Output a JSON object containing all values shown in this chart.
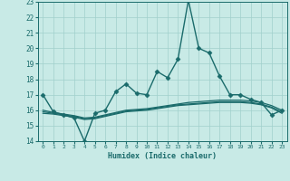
{
  "xlabel": "Humidex (Indice chaleur)",
  "xlim": [
    -0.5,
    23.5
  ],
  "ylim": [
    14,
    23
  ],
  "yticks": [
    14,
    15,
    16,
    17,
    18,
    19,
    20,
    21,
    22,
    23
  ],
  "xticks": [
    0,
    1,
    2,
    3,
    4,
    5,
    6,
    7,
    8,
    9,
    10,
    11,
    12,
    13,
    14,
    15,
    16,
    17,
    18,
    19,
    20,
    21,
    22,
    23
  ],
  "background_color": "#c8eae6",
  "grid_color": "#a0d0cc",
  "line_color": "#1a6b6b",
  "series": [
    {
      "x": [
        0,
        1,
        2,
        3,
        4,
        5,
        6,
        7,
        8,
        9,
        10,
        11,
        12,
        13,
        14,
        15,
        16,
        17,
        18,
        19,
        20,
        21,
        22,
        23
      ],
      "y": [
        17.0,
        15.9,
        15.7,
        15.5,
        14.0,
        15.8,
        16.0,
        17.2,
        17.7,
        17.1,
        17.0,
        18.5,
        18.1,
        19.3,
        23.1,
        20.0,
        19.7,
        18.2,
        17.0,
        17.0,
        16.7,
        16.5,
        15.7,
        16.0
      ],
      "marker": "D",
      "markersize": 2.5,
      "linewidth": 1.0
    },
    {
      "x": [
        0,
        1,
        2,
        3,
        4,
        5,
        6,
        7,
        8,
        9,
        10,
        11,
        12,
        13,
        14,
        15,
        16,
        17,
        18,
        19,
        20,
        21,
        22,
        23
      ],
      "y": [
        16.0,
        15.85,
        15.75,
        15.65,
        15.5,
        15.55,
        15.7,
        15.85,
        16.0,
        16.05,
        16.1,
        16.2,
        16.3,
        16.4,
        16.5,
        16.55,
        16.6,
        16.65,
        16.65,
        16.65,
        16.6,
        16.5,
        16.3,
        16.0
      ],
      "marker": null,
      "markersize": 0,
      "linewidth": 0.9
    },
    {
      "x": [
        0,
        1,
        2,
        3,
        4,
        5,
        6,
        7,
        8,
        9,
        10,
        11,
        12,
        13,
        14,
        15,
        16,
        17,
        18,
        19,
        20,
        21,
        22,
        23
      ],
      "y": [
        15.9,
        15.8,
        15.7,
        15.6,
        15.45,
        15.5,
        15.65,
        15.8,
        15.95,
        16.0,
        16.05,
        16.15,
        16.25,
        16.35,
        16.4,
        16.45,
        16.5,
        16.55,
        16.55,
        16.55,
        16.5,
        16.4,
        16.2,
        15.9
      ],
      "marker": null,
      "markersize": 0,
      "linewidth": 0.9
    },
    {
      "x": [
        0,
        1,
        2,
        3,
        4,
        5,
        6,
        7,
        8,
        9,
        10,
        11,
        12,
        13,
        14,
        15,
        16,
        17,
        18,
        19,
        20,
        21,
        22,
        23
      ],
      "y": [
        15.8,
        15.75,
        15.65,
        15.55,
        15.4,
        15.45,
        15.6,
        15.75,
        15.9,
        15.95,
        16.0,
        16.1,
        16.2,
        16.3,
        16.35,
        16.4,
        16.45,
        16.5,
        16.5,
        16.5,
        16.45,
        16.35,
        16.15,
        15.8
      ],
      "marker": null,
      "markersize": 0,
      "linewidth": 0.9
    }
  ]
}
